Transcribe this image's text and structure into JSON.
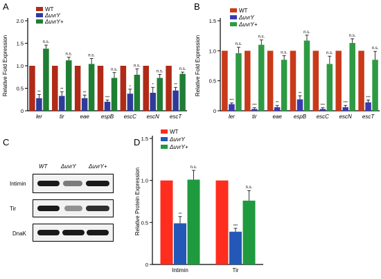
{
  "panel_letters": {
    "a": "A",
    "b": "B",
    "c": "C",
    "d": "D"
  },
  "colors": {
    "wt_a": "#b02a17",
    "uvry_a": "#2e3b9a",
    "comp_a": "#1e7e34",
    "wt_b": "#c83a1a",
    "uvry_b": "#3a3ab0",
    "comp_b": "#2f9a44",
    "wt_d": "#ff2d1e",
    "uvry_d": "#2358b8",
    "comp_d": "#1f9a3e",
    "band": "#1a1a1a"
  },
  "chart_data": [
    {
      "id": "A",
      "type": "bar",
      "ylabel": "Relative Fold Expression",
      "ylim": [
        0,
        2.0
      ],
      "yticks": [
        "0",
        "0.5",
        "1.0",
        "1.5",
        "2.0"
      ],
      "categories": [
        "ler",
        "tir",
        "eae",
        "espB",
        "escC",
        "escN",
        "escT"
      ],
      "series": [
        {
          "name": "WT",
          "values": [
            1.0,
            1.0,
            1.0,
            1.0,
            1.0,
            1.0,
            1.0
          ],
          "errors": [
            0,
            0,
            0,
            0,
            0,
            0,
            0
          ]
        },
        {
          "name": "ΔuvrY",
          "values": [
            0.28,
            0.33,
            0.28,
            0.2,
            0.38,
            0.4,
            0.45
          ],
          "errors": [
            0.08,
            0.09,
            0.07,
            0.04,
            0.1,
            0.12,
            0.07
          ]
        },
        {
          "name": "ΔuvrY+",
          "values": [
            1.38,
            1.12,
            1.04,
            0.73,
            0.8,
            0.73,
            0.82
          ],
          "errors": [
            0.08,
            0.07,
            0.12,
            0.12,
            0.13,
            0.08,
            0.04
          ]
        }
      ],
      "sig_uvry": [
        "**",
        "**",
        "**",
        "***",
        "*",
        "*",
        "**"
      ],
      "sig_comp": [
        "n.s.",
        "n.s.",
        "n.s.",
        "n.s.",
        "n.s.",
        "n.s.",
        "n.s."
      ],
      "legend_position": "top-left"
    },
    {
      "id": "B",
      "type": "bar",
      "ylabel": "Relative Fold Expression",
      "ylim": [
        0,
        1.5
      ],
      "yticks": [
        "0",
        "0.5",
        "1.0",
        "1.5"
      ],
      "categories": [
        "ler",
        "tir",
        "eae",
        "espB",
        "escC",
        "escN",
        "escT"
      ],
      "series": [
        {
          "name": "WT",
          "values": [
            1.0,
            1.0,
            1.0,
            1.0,
            1.0,
            1.0,
            1.0
          ],
          "errors": [
            0,
            0,
            0,
            0,
            0,
            0,
            0
          ]
        },
        {
          "name": "ΔuvrY",
          "values": [
            0.11,
            0.03,
            0.06,
            0.19,
            0.03,
            0.06,
            0.14
          ],
          "errors": [
            0.02,
            0.02,
            0.03,
            0.06,
            0.02,
            0.03,
            0.04
          ]
        },
        {
          "name": "ΔuvrY+",
          "values": [
            0.96,
            1.1,
            0.85,
            1.17,
            0.78,
            1.13,
            0.85
          ],
          "errors": [
            0.1,
            0.08,
            0.07,
            0.09,
            0.13,
            0.07,
            0.14
          ]
        }
      ],
      "sig_uvry": [
        "***",
        "***",
        "**",
        "**",
        "***",
        "***",
        "***"
      ],
      "sig_comp": [
        "n.s.",
        "n.s.",
        "n.s.",
        "n.s.",
        "n.s.",
        "n.s.",
        "n.s."
      ],
      "legend_position": "top-left"
    },
    {
      "id": "D",
      "type": "bar",
      "ylabel": "Relative Protein Expression",
      "ylim": [
        0,
        1.5
      ],
      "yticks": [
        "0",
        "0.5",
        "1.0",
        "1.5"
      ],
      "categories": [
        "Intimin",
        "Tir"
      ],
      "series": [
        {
          "name": "WT",
          "values": [
            1.0,
            1.0
          ],
          "errors": [
            0,
            0
          ]
        },
        {
          "name": "ΔuvrY",
          "values": [
            0.49,
            0.39
          ],
          "errors": [
            0.08,
            0.04
          ]
        },
        {
          "name": "ΔuvrY+",
          "values": [
            1.01,
            0.76
          ],
          "errors": [
            0.11,
            0.12
          ]
        }
      ],
      "sig_uvry": [
        "**",
        "***"
      ],
      "sig_comp": [
        "n.s.",
        "n.s."
      ],
      "legend_position": "top-left"
    }
  ],
  "blot": {
    "lanes": [
      "WT",
      "ΔuvrY",
      "ΔuvrY+"
    ],
    "rows": [
      {
        "label": "Intimin",
        "intensity": [
          1.0,
          0.55,
          1.0
        ]
      },
      {
        "label": "Tir",
        "intensity": [
          1.0,
          0.45,
          0.9
        ]
      },
      {
        "label": "DnaK",
        "intensity": [
          1.0,
          1.0,
          1.0
        ]
      }
    ]
  }
}
